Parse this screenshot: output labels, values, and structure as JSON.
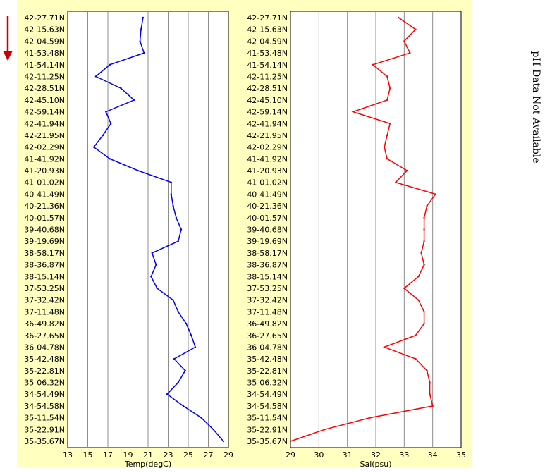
{
  "side_note": "pH Data Not Available",
  "colors": {
    "panel_bg": "#ffffc0",
    "temp_line": "#0000ff",
    "sal_line": "#ff0000",
    "arrow": "#cc0000",
    "grid": "#8c8c8c"
  },
  "arrow_icon": "down-arrow-icon",
  "chart_data": [
    {
      "type": "line",
      "title": "",
      "xlabel": "Temp(degC)",
      "ylabel": "",
      "xlim": [
        13,
        29
      ],
      "x_ticks": [
        "13",
        "15",
        "17",
        "19",
        "21",
        "23",
        "25",
        "27",
        "29"
      ],
      "grid": true,
      "y_categories": [
        "42-27.71N",
        "42-15.63N",
        "42-04.59N",
        "41-53.48N",
        "41-54.14N",
        "42-11.25N",
        "42-28.51N",
        "42-45.10N",
        "42-59.14N",
        "42-41.94N",
        "42-21.95N",
        "42-02.29N",
        "41-41.92N",
        "41-20.93N",
        "41-01.02N",
        "40-41.49N",
        "40-21.36N",
        "40-01.57N",
        "39-40.68N",
        "39-19.69N",
        "38-58.17N",
        "38-36.87N",
        "38-15.14N",
        "37-53.25N",
        "37-32.42N",
        "37-11.48N",
        "36-49.82N",
        "36-27.65N",
        "36-04.78N",
        "35-42.48N",
        "35-22.81N",
        "35-06.32N",
        "34-54.49N",
        "34-54.58N",
        "35-11.54N",
        "35-22.91N",
        "35-35.67N"
      ],
      "series": [
        {
          "values": [
            20.5,
            20.3,
            20.2,
            20.6,
            17.2,
            15.8,
            18.3,
            19.6,
            16.8,
            17.3,
            16.5,
            15.6,
            17.2,
            20.0,
            23.3,
            23.3,
            23.5,
            23.8,
            24.3,
            24.0,
            21.4,
            21.8,
            21.3,
            21.9,
            23.5,
            24.0,
            24.8,
            25.3,
            25.7,
            23.6,
            24.7,
            24.0,
            22.9,
            24.5,
            26.3,
            27.5,
            28.5
          ]
        }
      ]
    },
    {
      "type": "line",
      "title": "",
      "xlabel": "Sal(psu)",
      "ylabel": "",
      "xlim": [
        29,
        35
      ],
      "x_ticks": [
        "29",
        "30",
        "31",
        "32",
        "33",
        "34",
        "35"
      ],
      "grid": true,
      "y_categories": [
        "42-27.71N",
        "42-15.63N",
        "42-04.59N",
        "41-53.48N",
        "41-54.14N",
        "42-11.25N",
        "42-28.51N",
        "42-45.10N",
        "42-59.14N",
        "42-41.94N",
        "42-21.95N",
        "42-02.29N",
        "41-41.92N",
        "41-20.93N",
        "41-01.02N",
        "40-41.49N",
        "40-21.36N",
        "40-01.57N",
        "39-40.68N",
        "39-19.69N",
        "38-58.17N",
        "38-36.87N",
        "38-15.14N",
        "37-53.25N",
        "37-32.42N",
        "37-11.48N",
        "36-49.82N",
        "36-27.65N",
        "36-04.78N",
        "35-42.48N",
        "35-22.81N",
        "35-06.32N",
        "34-54.49N",
        "34-54.58N",
        "35-11.54N",
        "35-22.91N",
        "35-35.67N"
      ],
      "series": [
        {
          "values": [
            32.8,
            33.4,
            33.0,
            33.2,
            31.9,
            32.4,
            32.5,
            32.4,
            31.2,
            32.5,
            32.4,
            32.3,
            32.4,
            33.1,
            32.7,
            34.1,
            33.8,
            33.7,
            33.7,
            33.7,
            33.6,
            33.7,
            33.5,
            33.0,
            33.5,
            33.7,
            33.7,
            33.4,
            32.3,
            33.4,
            33.8,
            33.9,
            33.9,
            34.0,
            31.8,
            30.2,
            29.0
          ]
        }
      ]
    }
  ]
}
